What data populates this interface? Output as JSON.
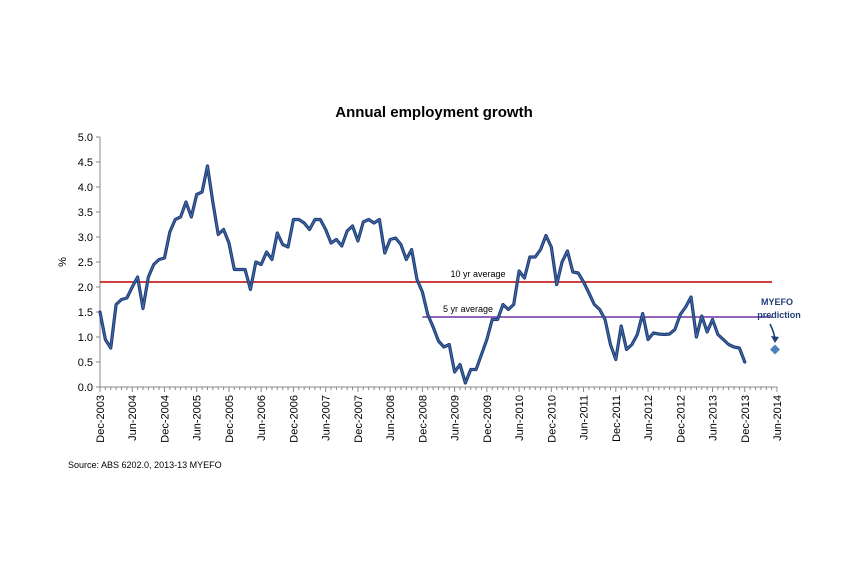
{
  "chart_data": {
    "type": "line",
    "title": "Annual employment growth",
    "ylabel": "%",
    "xlabel": "",
    "ylim": [
      0.0,
      5.0
    ],
    "ytick_labels": [
      "0.0",
      "0.5",
      "1.0",
      "1.5",
      "2.0",
      "2.5",
      "3.0",
      "3.5",
      "4.0",
      "4.5",
      "5.0"
    ],
    "xtick_labels": [
      "Dec-2003",
      "Jun-2004",
      "Dec-2004",
      "Jun-2005",
      "Dec-2005",
      "Jun-2006",
      "Dec-2006",
      "Jun-2007",
      "Dec-2007",
      "Jun-2008",
      "Dec-2008",
      "Jun-2009",
      "Dec-2009",
      "Jun-2010",
      "Dec-2010",
      "Jun-2011",
      "Dec-2011",
      "Jun-2012",
      "Dec-2012",
      "Jun-2013",
      "Dec-2013",
      "Jun-2014"
    ],
    "x_start": "Dec-2003",
    "x_end": "Jun-2014",
    "grid": false,
    "series": [
      {
        "name": "",
        "color": "#1f3f78",
        "values": [
          1.5,
          0.95,
          0.78,
          1.65,
          1.75,
          1.78,
          2.0,
          2.2,
          1.57,
          2.2,
          2.45,
          2.55,
          2.58,
          3.1,
          3.35,
          3.4,
          3.7,
          3.4,
          3.85,
          3.9,
          4.42,
          3.7,
          3.05,
          3.15,
          2.88,
          2.35,
          2.35,
          2.35,
          1.95,
          2.5,
          2.45,
          2.7,
          2.55,
          3.08,
          2.85,
          2.8,
          3.35,
          3.35,
          3.28,
          3.15,
          3.35,
          3.35,
          3.15,
          2.88,
          2.95,
          2.82,
          3.12,
          3.22,
          2.92,
          3.3,
          3.35,
          3.28,
          3.35,
          2.68,
          2.95,
          2.98,
          2.85,
          2.55,
          2.75,
          2.15,
          1.9,
          1.45,
          1.2,
          0.92,
          0.8,
          0.85,
          0.3,
          0.45,
          0.08,
          0.35,
          0.35,
          0.65,
          0.95,
          1.35,
          1.35,
          1.65,
          1.55,
          1.65,
          2.32,
          2.18,
          2.6,
          2.6,
          2.75,
          3.03,
          2.8,
          2.05,
          2.5,
          2.72,
          2.3,
          2.28,
          2.1,
          1.88,
          1.65,
          1.55,
          1.35,
          0.85,
          0.55,
          1.22,
          0.75,
          0.85,
          1.05,
          1.47,
          0.95,
          1.08,
          1.06,
          1.05,
          1.06,
          1.15,
          1.45,
          1.6,
          1.8,
          1.0,
          1.42,
          1.1,
          1.35,
          1.05,
          0.95,
          0.85,
          0.8,
          0.78,
          0.5
        ]
      }
    ],
    "reference_lines": [
      {
        "label": "10 yr average",
        "value": 2.1,
        "color": "#c00000",
        "x_from": "Dec-2003",
        "x_to": "Jun-2014"
      },
      {
        "label": "5 yr average",
        "value": 1.4,
        "color": "#7030a0",
        "x_from": "Dec-2008",
        "x_to": "Jun-2014"
      }
    ],
    "prediction": {
      "label_line1": "MYEFO",
      "label_line2": "prediction",
      "x": "Jun-2014",
      "value": 0.75,
      "color": "#4f81bd"
    },
    "source": "Source: ABS 6202.0, 2013-13 MYEFO"
  }
}
